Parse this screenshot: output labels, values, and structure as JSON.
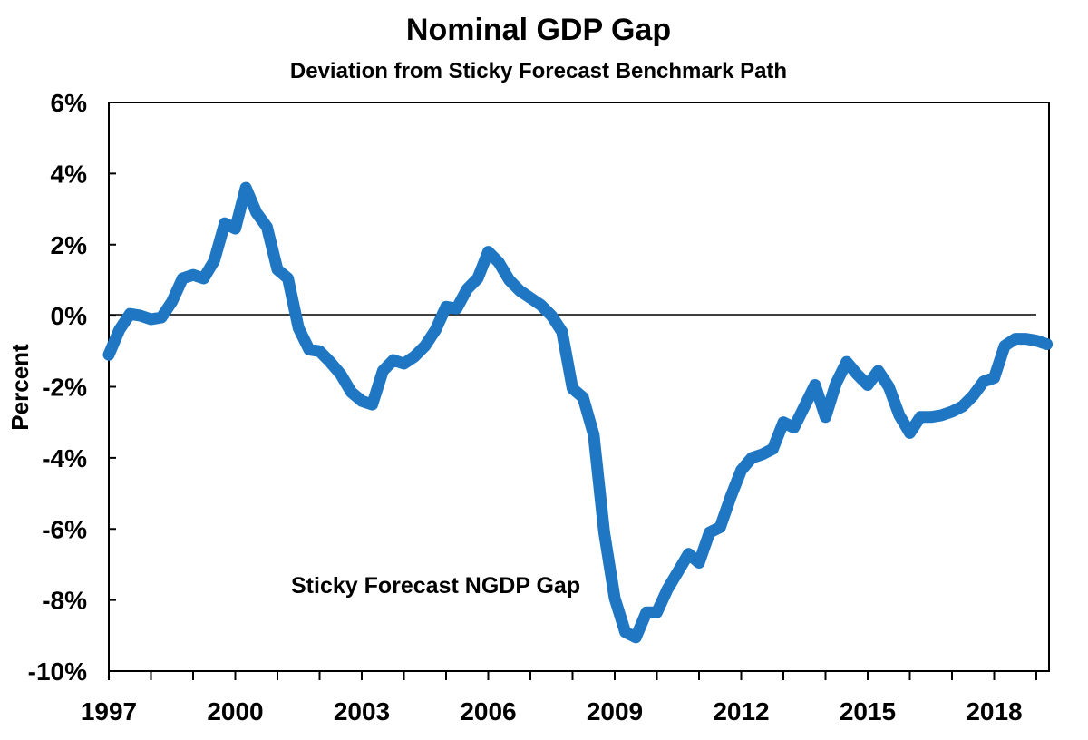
{
  "chart_data": {
    "type": "line",
    "title": "Nominal GDP Gap",
    "subtitle": "Deviation from Sticky Forecast Benchmark Path",
    "xlabel": "",
    "ylabel": "Percent",
    "xlim": [
      1997,
      2019.25
    ],
    "ylim": [
      -10,
      6
    ],
    "x_ticks": [
      1997,
      1998,
      1999,
      2000,
      2001,
      2002,
      2003,
      2004,
      2005,
      2006,
      2007,
      2008,
      2009,
      2010,
      2011,
      2012,
      2013,
      2014,
      2015,
      2016,
      2017,
      2018,
      2019
    ],
    "x_tick_labels": [
      "1997",
      "2000",
      "2003",
      "2006",
      "2009",
      "2012",
      "2015",
      "2018"
    ],
    "x_tick_label_values": [
      1997,
      2000,
      2003,
      2006,
      2009,
      2012,
      2015,
      2018
    ],
    "y_ticks": [
      6,
      4,
      2,
      0,
      -2,
      -4,
      -6,
      -8,
      -10
    ],
    "y_tick_labels": [
      "6%",
      "4%",
      "2%",
      "0%",
      "-2%",
      "-4%",
      "-6%",
      "-8%",
      "-10%"
    ],
    "grid": false,
    "zero_line": true,
    "legend": "none",
    "annotation": "Sticky Forecast NGDP Gap",
    "series_color": "#1f77c4",
    "series": [
      {
        "x": [
          1997.0,
          1997.25,
          1997.5,
          1997.75,
          1998.0,
          1998.25,
          1998.5,
          1998.75,
          1999.0,
          1999.25,
          1999.5,
          1999.75,
          2000.0,
          2000.25,
          2000.5,
          2000.75,
          2001.0,
          2001.25,
          2001.5,
          2001.75,
          2002.0,
          2002.25,
          2002.5,
          2002.75,
          2003.0,
          2003.25,
          2003.5,
          2003.75,
          2004.0,
          2004.25,
          2004.5,
          2004.75,
          2005.0,
          2005.25,
          2005.5,
          2005.75,
          2006.0,
          2006.25,
          2006.5,
          2006.75,
          2007.0,
          2007.25,
          2007.5,
          2007.75,
          2008.0,
          2008.25,
          2008.5,
          2008.75,
          2009.0,
          2009.25,
          2009.5,
          2009.75,
          2010.0,
          2010.25,
          2010.5,
          2010.75,
          2011.0,
          2011.25,
          2011.5,
          2011.75,
          2012.0,
          2012.25,
          2012.5,
          2012.75,
          2013.0,
          2013.25,
          2013.5,
          2013.75,
          2014.0,
          2014.25,
          2014.5,
          2014.75,
          2015.0,
          2015.25,
          2015.5,
          2015.75,
          2016.0,
          2016.25,
          2016.5,
          2016.75,
          2017.0,
          2017.25,
          2017.5,
          2017.75,
          2018.0,
          2018.25,
          2018.5,
          2018.75,
          2019.0,
          2019.25
        ],
        "values": [
          -1.1,
          -0.4,
          0.05,
          0.0,
          -0.1,
          -0.05,
          0.4,
          1.05,
          1.15,
          1.05,
          1.55,
          2.6,
          2.45,
          3.6,
          2.9,
          2.5,
          1.3,
          1.05,
          -0.35,
          -0.95,
          -1.0,
          -1.3,
          -1.65,
          -2.15,
          -2.4,
          -2.5,
          -1.55,
          -1.25,
          -1.35,
          -1.15,
          -0.85,
          -0.4,
          0.25,
          0.2,
          0.75,
          1.05,
          1.8,
          1.5,
          1.0,
          0.7,
          0.5,
          0.3,
          0.0,
          -0.45,
          -2.05,
          -2.3,
          -3.35,
          -6.1,
          -7.95,
          -8.9,
          -9.05,
          -8.35,
          -8.35,
          -7.7,
          -7.2,
          -6.7,
          -6.95,
          -6.1,
          -5.95,
          -5.1,
          -4.35,
          -4.0,
          -3.9,
          -3.75,
          -3.0,
          -3.15,
          -2.55,
          -1.95,
          -2.85,
          -1.9,
          -1.3,
          -1.65,
          -1.95,
          -1.55,
          -2.0,
          -2.8,
          -3.3,
          -2.85,
          -2.85,
          -2.8,
          -2.7,
          -2.55,
          -2.25,
          -1.85,
          -1.75,
          -0.85,
          -0.65,
          -0.65,
          -0.7,
          -0.8
        ]
      }
    ]
  }
}
